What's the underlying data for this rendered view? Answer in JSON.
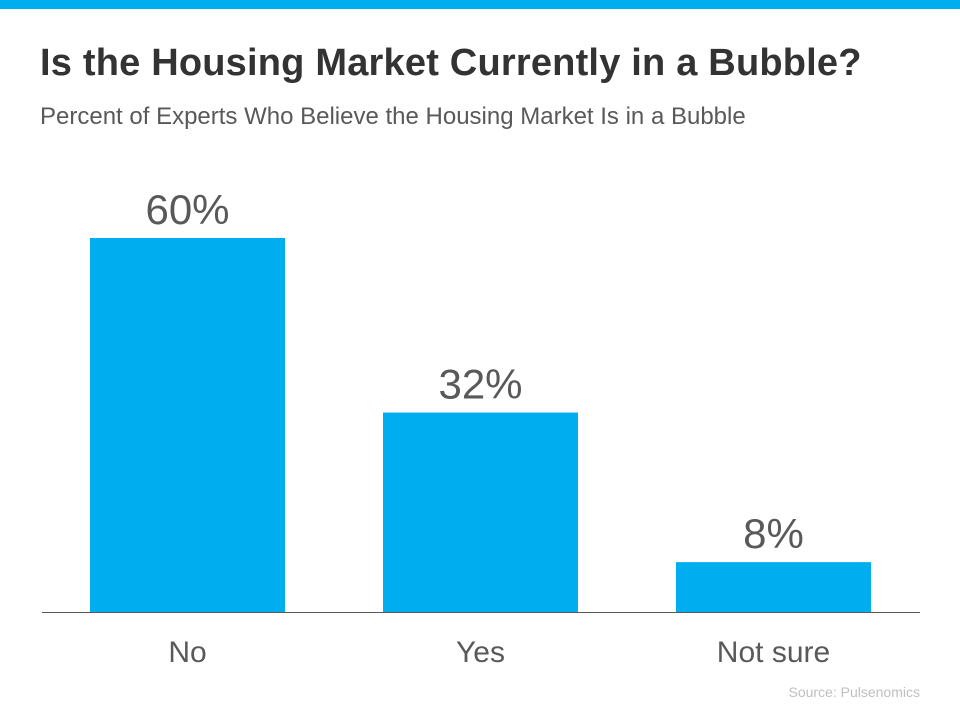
{
  "colors": {
    "accent": "#00aeef",
    "bar": "#00aeef",
    "title": "#333333",
    "subtitle": "#595959",
    "value_label": "#595959",
    "category_label": "#595959",
    "axis": "#595959",
    "source": "#bfbfbf"
  },
  "header": {
    "title": "Is the Housing Market Currently in a Bubble?",
    "subtitle": "Percent of Experts Who Believe the Housing Market Is in a Bubble"
  },
  "footer": {
    "source": "Source: Pulsenomics"
  },
  "chart_data": {
    "type": "bar",
    "title": "Is the Housing Market Currently in a Bubble?",
    "subtitle": "Percent of Experts Who Believe the Housing Market Is in a Bubble",
    "categories": [
      "No",
      "Yes",
      "Not sure"
    ],
    "values": [
      60,
      32,
      8
    ],
    "value_labels": [
      "60%",
      "32%",
      "8%"
    ],
    "unit": "%",
    "xlabel": "",
    "ylabel": "",
    "ylim": [
      0,
      60
    ],
    "grid": false,
    "legend": "none"
  }
}
